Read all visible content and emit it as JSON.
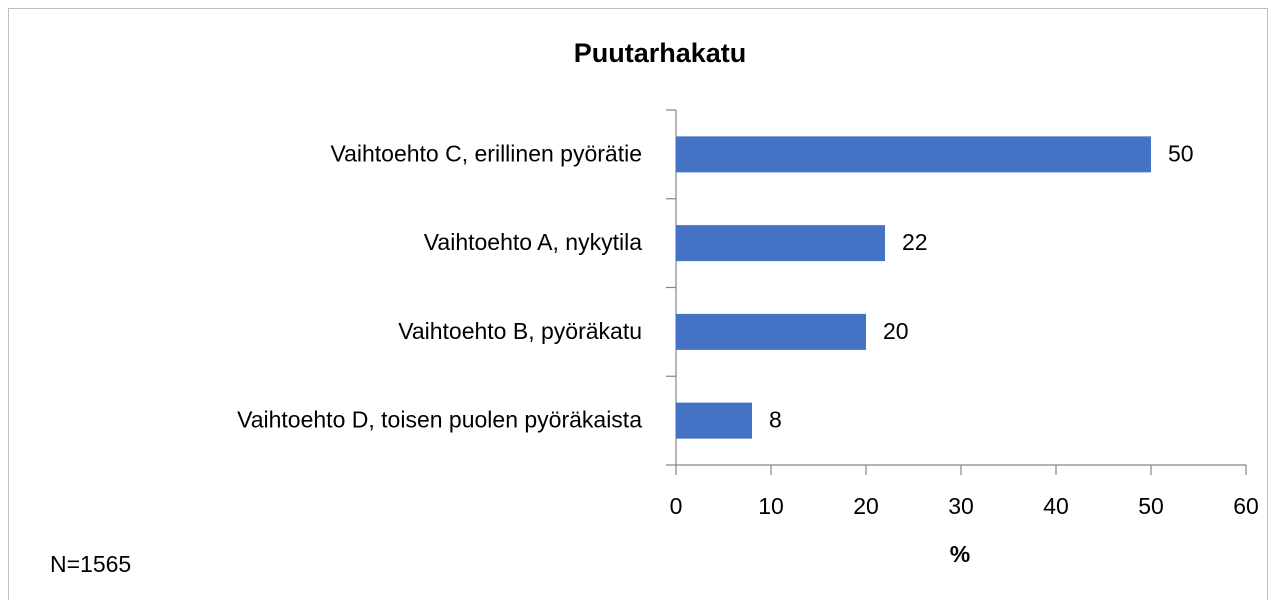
{
  "chart_data": {
    "type": "bar",
    "orientation": "horizontal",
    "title": "Puutarhakatu",
    "categories": [
      "Vaihtoehto C, erillinen pyörätie",
      "Vaihtoehto A, nykytila",
      "Vaihtoehto B, pyöräkatu",
      "Vaihtoehto D, toisen puolen pyöräkaista"
    ],
    "values": [
      50,
      22,
      20,
      8
    ],
    "color": "#4472c4",
    "xlim": [
      0,
      60
    ],
    "xticks": [
      0,
      10,
      20,
      30,
      40,
      50,
      60
    ],
    "x_label": "%",
    "note": "N=1565",
    "grid": false
  }
}
